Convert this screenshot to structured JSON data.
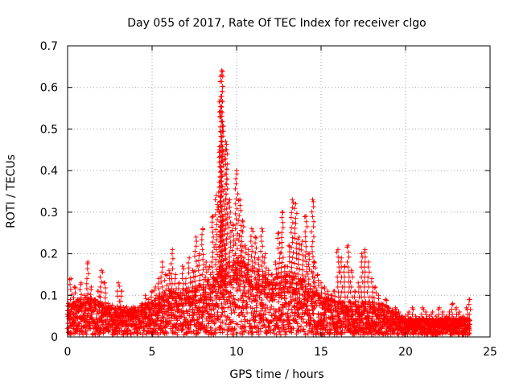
{
  "chart_data": {
    "type": "scatter",
    "title": "Day 055 of 2017, Rate Of TEC Index for receiver clgo",
    "xlabel": "GPS time / hours",
    "ylabel": "ROTI / TECUs",
    "xlim": [
      0,
      25
    ],
    "ylim": [
      0,
      0.7
    ],
    "xticks": [
      0,
      5,
      10,
      15,
      20,
      25
    ],
    "yticks": [
      0,
      0.1,
      0.2,
      0.3,
      0.4,
      0.5,
      0.6,
      0.7
    ],
    "xtick_labels": [
      "0",
      "5",
      "10",
      "15",
      "20",
      "25"
    ],
    "ytick_labels": [
      "0",
      "0.1",
      "0.2",
      "0.3",
      "0.4",
      "0.5",
      "0.6",
      "0.7"
    ],
    "grid": true,
    "marker": "plus",
    "color": "#ff0000",
    "series": [
      {
        "name": "ROTI",
        "x": [
          0.05,
          0.2,
          0.4,
          0.6,
          0.8,
          1.0,
          1.2,
          1.4,
          1.6,
          1.8,
          2.0,
          2.2,
          2.4,
          2.6,
          2.8,
          3.0,
          3.2,
          3.4,
          3.6,
          3.8,
          4.0,
          4.2,
          4.4,
          4.6,
          4.8,
          5.0,
          5.2,
          5.4,
          5.6,
          5.8,
          6.0,
          6.2,
          6.4,
          6.6,
          6.8,
          7.0,
          7.2,
          7.4,
          7.6,
          7.8,
          8.0,
          8.2,
          8.4,
          8.6,
          8.8,
          9.0,
          9.05,
          9.1,
          9.12,
          9.15,
          9.2,
          9.35,
          9.4,
          9.6,
          9.8,
          10.0,
          10.2,
          10.35,
          10.5,
          10.7,
          10.9,
          11.1,
          11.3,
          11.5,
          11.7,
          11.9,
          12.1,
          12.3,
          12.5,
          12.7,
          12.9,
          13.1,
          13.3,
          13.5,
          13.7,
          13.9,
          14.1,
          14.3,
          14.5,
          14.6,
          14.8,
          15.0,
          15.2,
          15.4,
          15.6,
          15.8,
          16.0,
          16.2,
          16.4,
          16.6,
          16.8,
          17.0,
          17.2,
          17.4,
          17.6,
          17.8,
          18.0,
          18.2,
          18.4,
          18.6,
          18.8,
          19.0,
          19.2,
          19.4,
          19.6,
          19.8,
          20.0,
          20.2,
          20.4,
          20.6,
          20.8,
          21.0,
          21.2,
          21.4,
          21.6,
          21.8,
          22.0,
          22.2,
          22.4,
          22.6,
          22.8,
          23.0,
          23.2,
          23.4,
          23.6,
          23.8
        ],
        "y": [
          0.08,
          0.14,
          0.12,
          0.09,
          0.13,
          0.1,
          0.18,
          0.12,
          0.09,
          0.11,
          0.16,
          0.13,
          0.08,
          0.07,
          0.06,
          0.13,
          0.11,
          0.07,
          0.06,
          0.05,
          0.07,
          0.06,
          0.08,
          0.1,
          0.09,
          0.11,
          0.12,
          0.14,
          0.18,
          0.15,
          0.16,
          0.21,
          0.15,
          0.13,
          0.17,
          0.14,
          0.19,
          0.16,
          0.24,
          0.2,
          0.26,
          0.18,
          0.17,
          0.29,
          0.34,
          0.45,
          0.57,
          0.63,
          0.64,
          0.54,
          0.29,
          0.47,
          0.45,
          0.33,
          0.27,
          0.4,
          0.33,
          0.28,
          0.22,
          0.21,
          0.26,
          0.24,
          0.19,
          0.26,
          0.2,
          0.16,
          0.15,
          0.18,
          0.25,
          0.3,
          0.17,
          0.22,
          0.33,
          0.32,
          0.24,
          0.23,
          0.29,
          0.2,
          0.33,
          0.18,
          0.15,
          0.13,
          0.12,
          0.11,
          0.1,
          0.11,
          0.21,
          0.19,
          0.17,
          0.22,
          0.16,
          0.11,
          0.13,
          0.2,
          0.21,
          0.18,
          0.14,
          0.12,
          0.1,
          0.08,
          0.09,
          0.07,
          0.06,
          0.07,
          0.06,
          0.05,
          0.05,
          0.06,
          0.07,
          0.05,
          0.04,
          0.07,
          0.06,
          0.05,
          0.06,
          0.05,
          0.07,
          0.06,
          0.05,
          0.06,
          0.08,
          0.07,
          0.06,
          0.05,
          0.07,
          0.09
        ]
      }
    ],
    "baseline_envelope": {
      "x": [
        0,
        1,
        2,
        3,
        4,
        5,
        6,
        7,
        8,
        9,
        10,
        11,
        12,
        13,
        14,
        15,
        16,
        17,
        18,
        19,
        20,
        21,
        22,
        23,
        23.8
      ],
      "y": [
        0.05,
        0.07,
        0.06,
        0.05,
        0.05,
        0.06,
        0.08,
        0.08,
        0.09,
        0.12,
        0.14,
        0.12,
        0.1,
        0.11,
        0.1,
        0.07,
        0.06,
        0.06,
        0.06,
        0.05,
        0.03,
        0.03,
        0.03,
        0.03,
        0.03
      ]
    }
  }
}
